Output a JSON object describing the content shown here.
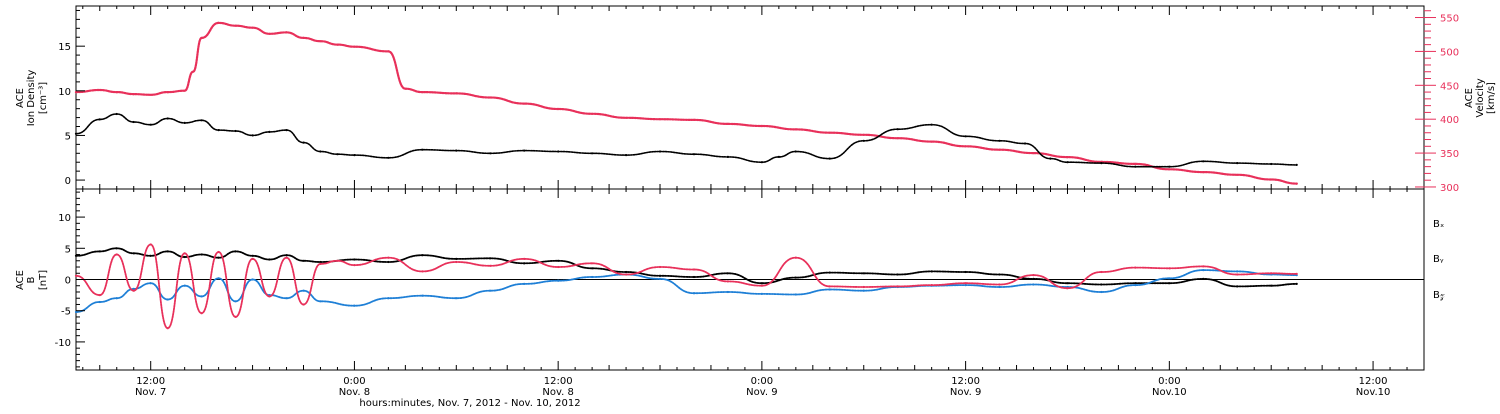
{
  "colors": {
    "density": "#000000",
    "velocity": "#e8305a",
    "bx": "#000000",
    "by": "#1e7fd6",
    "bz": "#e8305a",
    "axis": "#000000"
  },
  "time_axis": {
    "xlabel": "hours:minutes, Nov.  7, 2012 - Nov. 10, 2012",
    "ticks": [
      {
        "hour": 12,
        "line1": "12:00",
        "line2": "Nov. 7"
      },
      {
        "hour": 24,
        "line1": "0:00",
        "line2": "Nov. 8"
      },
      {
        "hour": 36,
        "line1": "12:00",
        "line2": "Nov. 8"
      },
      {
        "hour": 48,
        "line1": "0:00",
        "line2": "Nov. 9"
      },
      {
        "hour": 60,
        "line1": "12:00",
        "line2": "Nov. 9"
      },
      {
        "hour": 72,
        "line1": "0:00",
        "line2": "Nov.10"
      },
      {
        "hour": 84,
        "line1": "12:00",
        "line2": "Nov.10"
      }
    ]
  },
  "chart_data": [
    {
      "type": "scatter",
      "panel": "top",
      "x_unit": "hours since Nov. 7 0:00",
      "xlim": [
        7.6,
        87.0
      ],
      "left_axis": {
        "label_lines": [
          "ACE",
          "Ion Density",
          "[cm⁻³]"
        ],
        "ylim": [
          -1,
          19.5
        ],
        "ticks": [
          0,
          5,
          10,
          15
        ]
      },
      "right_axis": {
        "label_lines": [
          "ACE",
          "Velocity",
          "[km/s]"
        ],
        "ylim": [
          297,
          567
        ],
        "ticks": [
          300,
          350,
          400,
          450,
          500,
          550
        ]
      },
      "series": [
        {
          "key": "density",
          "axis": "left",
          "x": [
            7.6,
            9,
            10,
            11,
            12,
            13,
            14,
            15,
            16,
            17,
            18,
            19,
            20,
            21,
            22,
            23,
            24,
            26,
            28,
            30,
            32,
            34,
            36,
            38,
            40,
            42,
            44,
            46,
            48,
            49,
            50,
            52,
            54,
            56,
            58,
            60,
            62,
            63.5,
            65,
            66,
            68,
            70,
            72,
            74,
            76,
            78,
            79.5
          ],
          "y": [
            5.2,
            6.8,
            7.4,
            6.5,
            6.2,
            6.9,
            6.4,
            6.7,
            5.6,
            5.5,
            5.0,
            5.4,
            5.6,
            4.2,
            3.2,
            2.9,
            2.8,
            2.5,
            3.4,
            3.3,
            3.0,
            3.3,
            3.2,
            3.0,
            2.8,
            3.2,
            2.9,
            2.6,
            2.0,
            2.6,
            3.2,
            2.4,
            4.4,
            5.7,
            6.2,
            4.9,
            4.4,
            4.1,
            2.4,
            2.0,
            1.9,
            1.5,
            1.5,
            2.1,
            1.9,
            1.8,
            1.7
          ]
        },
        {
          "key": "velocity",
          "axis": "right",
          "x": [
            7.6,
            9,
            10,
            11,
            12,
            13,
            14,
            14.5,
            15,
            16,
            17,
            18,
            19,
            20,
            21,
            22,
            23,
            24,
            26,
            27,
            28,
            30,
            32,
            34,
            36,
            38,
            40,
            42,
            44,
            46,
            48,
            50,
            52,
            54,
            56,
            58,
            60,
            62,
            64,
            66,
            68,
            70,
            72,
            74,
            76,
            78,
            79.5
          ],
          "y": [
            440,
            443,
            440,
            437,
            436,
            440,
            442,
            470,
            520,
            542,
            538,
            535,
            526,
            528,
            520,
            515,
            510,
            507,
            500,
            445,
            440,
            438,
            432,
            423,
            415,
            408,
            402,
            400,
            399,
            393,
            390,
            385,
            380,
            377,
            372,
            367,
            360,
            355,
            350,
            344,
            337,
            334,
            326,
            322,
            318,
            311,
            305
          ]
        }
      ]
    },
    {
      "type": "scatter",
      "panel": "bottom",
      "x_unit": "hours since Nov. 7 0:00",
      "xlim": [
        7.6,
        87.0
      ],
      "ylabel_lines": [
        "ACE",
        "B",
        "[nT]"
      ],
      "ylim": [
        -14.5,
        14.5
      ],
      "yticks": [
        -10,
        -5,
        0,
        5,
        10
      ],
      "zero_line": true,
      "legend": [
        "Bₓ",
        "Bᵧ",
        "B𝓏"
      ],
      "series": [
        {
          "key": "bx",
          "x": [
            7.6,
            9,
            10,
            11,
            12,
            13,
            14,
            15,
            16,
            17,
            18,
            19,
            20,
            21,
            22,
            24,
            26,
            28,
            30,
            32,
            34,
            36,
            38,
            40,
            42,
            44,
            46,
            48,
            50,
            52,
            54,
            56,
            58,
            60,
            62,
            64,
            66,
            68,
            70,
            72,
            74,
            76,
            78,
            79.5
          ],
          "y": [
            3.8,
            4.5,
            5.0,
            4.2,
            3.8,
            4.5,
            3.6,
            4.0,
            3.5,
            4.5,
            3.8,
            3.2,
            3.9,
            3.0,
            2.8,
            3.2,
            2.8,
            3.9,
            3.3,
            3.4,
            2.6,
            3.0,
            1.8,
            1.2,
            0.6,
            0.4,
            1.0,
            -0.6,
            0.3,
            1.1,
            1.0,
            0.8,
            1.3,
            1.2,
            0.8,
            0.1,
            -0.6,
            -0.8,
            -0.6,
            -0.6,
            0.1,
            -1.1,
            -1.0,
            -0.7
          ]
        },
        {
          "key": "by",
          "x": [
            7.6,
            9,
            10,
            11,
            12,
            13,
            14,
            15,
            16,
            17,
            18,
            19,
            20,
            21,
            22,
            24,
            26,
            28,
            30,
            32,
            34,
            36,
            38,
            40,
            42,
            44,
            46,
            48,
            50,
            52,
            54,
            56,
            58,
            60,
            62,
            64,
            66,
            68,
            70,
            72,
            74,
            76,
            78,
            79.5
          ],
          "y": [
            -5.2,
            -3.6,
            -3.0,
            -1.5,
            -0.6,
            -3.2,
            -1.0,
            -2.7,
            0.2,
            -3.5,
            0.0,
            -2.5,
            -3.0,
            -1.8,
            -3.5,
            -4.2,
            -3.0,
            -2.6,
            -3.0,
            -1.8,
            -0.7,
            -0.2,
            0.4,
            0.8,
            0.1,
            -2.2,
            -2.0,
            -2.3,
            -2.4,
            -1.6,
            -1.8,
            -1.2,
            -1.0,
            -0.9,
            -1.2,
            -0.8,
            -1.2,
            -2.0,
            -0.9,
            0.2,
            1.5,
            1.3,
            0.8,
            0.7
          ]
        },
        {
          "key": "bz",
          "x": [
            7.6,
            9,
            10,
            11,
            12,
            13,
            14,
            15,
            16,
            17,
            18,
            19,
            20,
            21,
            22,
            23,
            24,
            26,
            28,
            30,
            32,
            34,
            36,
            38,
            40,
            42,
            44,
            46,
            48,
            50,
            52,
            54,
            56,
            58,
            60,
            62,
            64,
            66,
            68,
            70,
            72,
            74,
            76,
            78,
            79.5
          ],
          "y": [
            0.6,
            -2.5,
            4.0,
            -1.8,
            5.6,
            -7.8,
            4.2,
            -5.4,
            4.4,
            -6.0,
            3.3,
            -2.7,
            3.5,
            -4.0,
            2.5,
            3.0,
            2.3,
            3.5,
            1.3,
            2.8,
            2.2,
            3.3,
            2.0,
            2.6,
            0.8,
            2.0,
            1.6,
            -0.3,
            -1.0,
            3.5,
            -1.1,
            -1.2,
            -1.1,
            -0.9,
            -0.6,
            -0.8,
            0.7,
            -1.4,
            1.2,
            1.9,
            1.8,
            2.1,
            0.8,
            1.0,
            0.9
          ]
        }
      ]
    }
  ]
}
